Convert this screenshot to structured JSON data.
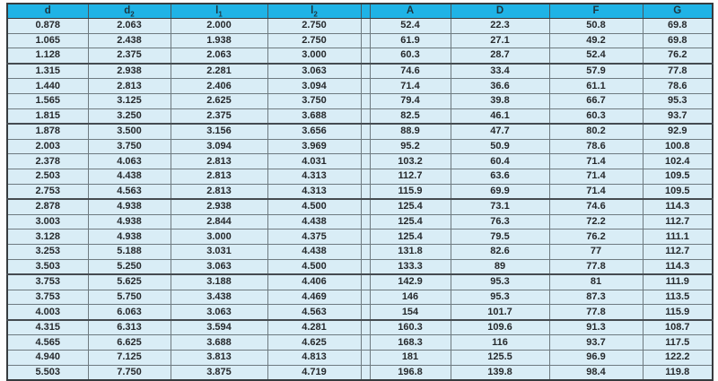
{
  "table": {
    "title": "bearing-dimension-table",
    "columns": [
      {
        "label": "d",
        "sub": ""
      },
      {
        "label": "d",
        "sub": "2"
      },
      {
        "label": "l",
        "sub": "1"
      },
      {
        "label": "l",
        "sub": "2"
      },
      {
        "label": "A",
        "sub": ""
      },
      {
        "label": "D",
        "sub": ""
      },
      {
        "label": "F",
        "sub": ""
      },
      {
        "label": "G",
        "sub": ""
      }
    ],
    "rows": [
      [
        "0.878",
        "2.063",
        "2.000",
        "2.750",
        "52.4",
        "22.3",
        "50.8",
        "69.8"
      ],
      [
        "1.065",
        "2.438",
        "1.938",
        "2.750",
        "61.9",
        "27.1",
        "49.2",
        "69.8"
      ],
      [
        "1.128",
        "2.375",
        "2.063",
        "3.000",
        "60.3",
        "28.7",
        "52.4",
        "76.2"
      ],
      [
        "1.315",
        "2.938",
        "2.281",
        "3.063",
        "74.6",
        "33.4",
        "57.9",
        "77.8"
      ],
      [
        "1.440",
        "2.813",
        "2.406",
        "3.094",
        "71.4",
        "36.6",
        "61.1",
        "78.6"
      ],
      [
        "1.565",
        "3.125",
        "2.625",
        "3.750",
        "79.4",
        "39.8",
        "66.7",
        "95.3"
      ],
      [
        "1.815",
        "3.250",
        "2.375",
        "3.688",
        "82.5",
        "46.1",
        "60.3",
        "93.7"
      ],
      [
        "1.878",
        "3.500",
        "3.156",
        "3.656",
        "88.9",
        "47.7",
        "80.2",
        "92.9"
      ],
      [
        "2.003",
        "3.750",
        "3.094",
        "3.969",
        "95.2",
        "50.9",
        "78.6",
        "100.8"
      ],
      [
        "2.378",
        "4.063",
        "2.813",
        "4.031",
        "103.2",
        "60.4",
        "71.4",
        "102.4"
      ],
      [
        "2.503",
        "4.438",
        "2.813",
        "4.313",
        "112.7",
        "63.6",
        "71.4",
        "109.5"
      ],
      [
        "2.753",
        "4.563",
        "2.813",
        "4.313",
        "115.9",
        "69.9",
        "71.4",
        "109.5"
      ],
      [
        "2.878",
        "4.938",
        "2.938",
        "4.500",
        "125.4",
        "73.1",
        "74.6",
        "114.3"
      ],
      [
        "3.003",
        "4.938",
        "2.844",
        "4.438",
        "125.4",
        "76.3",
        "72.2",
        "112.7"
      ],
      [
        "3.128",
        "4.938",
        "3.000",
        "4.375",
        "125.4",
        "79.5",
        "76.2",
        "111.1"
      ],
      [
        "3.253",
        "5.188",
        "3.031",
        "4.438",
        "131.8",
        "82.6",
        "77",
        "112.7"
      ],
      [
        "3.503",
        "5.250",
        "3.063",
        "4.500",
        "133.3",
        "89",
        "77.8",
        "114.3"
      ],
      [
        "3.753",
        "5.625",
        "3.188",
        "4.406",
        "142.9",
        "95.3",
        "81",
        "111.9"
      ],
      [
        "3.753",
        "5.750",
        "3.438",
        "4.469",
        "146",
        "95.3",
        "87.3",
        "113.5"
      ],
      [
        "4.003",
        "6.063",
        "3.063",
        "4.563",
        "154",
        "101.7",
        "77.8",
        "115.9"
      ],
      [
        "4.315",
        "6.313",
        "3.594",
        "4.281",
        "160.3",
        "109.6",
        "91.3",
        "108.7"
      ],
      [
        "4.565",
        "6.625",
        "3.688",
        "4.625",
        "168.3",
        "116",
        "93.7",
        "117.5"
      ],
      [
        "4.940",
        "7.125",
        "3.813",
        "4.813",
        "181",
        "125.5",
        "96.9",
        "122.2"
      ],
      [
        "5.503",
        "7.750",
        "3.875",
        "4.719",
        "196.8",
        "139.8",
        "98.4",
        "119.8"
      ]
    ],
    "thick_border_after_rows": [
      3,
      7,
      12,
      17,
      20
    ],
    "double_separator_after_column": 4,
    "colors": {
      "header_bg": "#1fb3e6",
      "cell_bg": "#d9edf6",
      "grid_line": "#6e7a80",
      "group_line": "#454b50",
      "outer_border": "#363b3e",
      "header_text": "#1d3640",
      "cell_text": "#26292c"
    }
  }
}
